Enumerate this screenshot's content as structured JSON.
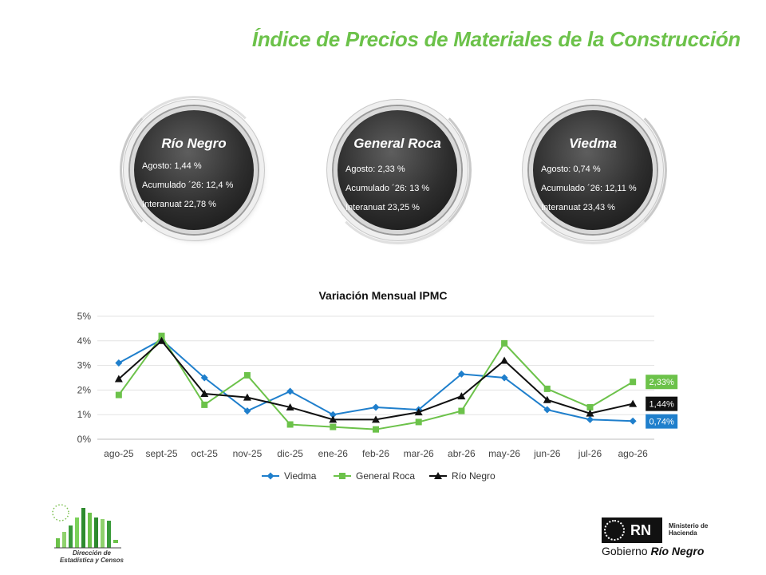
{
  "header": {
    "title": "Índice de Precios de Materiales de la Construcción"
  },
  "badges": [
    {
      "name": "Río Negro",
      "lines": [
        "Agosto: 1,44 %",
        "Acumulado ´26: 12,4 %",
        "Interanuat 22,78 %"
      ]
    },
    {
      "name": "General Roca",
      "lines": [
        "Agosto: 2,33 %",
        "Acumulado ´26: 13 %",
        "Interanuat 23,25 %"
      ]
    },
    {
      "name": "Viedma",
      "lines": [
        "Agosto: 0,74 %",
        "Acumulado ´26: 12,11 %",
        "Interanuat 23,43 %"
      ]
    }
  ],
  "chart_data": {
    "type": "line",
    "title": "Variación Mensual IPMC",
    "categories": [
      "ago-25",
      "sept-25",
      "oct-25",
      "nov-25",
      "dic-25",
      "ene-26",
      "feb-26",
      "mar-26",
      "abr-26",
      "may-26",
      "jun-26",
      "jul-26",
      "ago-26"
    ],
    "ylim": [
      0,
      5
    ],
    "yticks": [
      0,
      1,
      2,
      3,
      4,
      5
    ],
    "ytick_labels": [
      "0%",
      "1%",
      "2%",
      "3%",
      "4%",
      "5%"
    ],
    "grid": true,
    "legend": "bottom",
    "series": [
      {
        "name": "Viedma",
        "color": "#1f7fcc",
        "marker": "diamond",
        "values": [
          3.1,
          4.05,
          2.5,
          1.15,
          1.95,
          1.0,
          1.3,
          1.2,
          2.65,
          2.5,
          1.2,
          0.8,
          0.74
        ],
        "end_label": "0,74%"
      },
      {
        "name": "General Roca",
        "color": "#6cc24a",
        "marker": "square",
        "values": [
          1.8,
          4.2,
          1.4,
          2.6,
          0.6,
          0.5,
          0.4,
          0.7,
          1.15,
          3.9,
          2.05,
          1.3,
          2.33
        ],
        "end_label": "2,33%"
      },
      {
        "name": "Río Negro",
        "color": "#111111",
        "marker": "triangle",
        "values": [
          2.45,
          4.0,
          1.85,
          1.7,
          1.3,
          0.8,
          0.8,
          1.1,
          1.75,
          3.2,
          1.6,
          1.05,
          1.44
        ],
        "end_label": "1,44%"
      }
    ]
  },
  "footer": {
    "left_logo": [
      "Dirección de",
      "Estadística y Censos"
    ],
    "right_logo": {
      "rn": "RN",
      "ministry": [
        "Ministerio de",
        "Hacienda"
      ],
      "gobierno": "Gobierno",
      "province": "Río Negro"
    }
  }
}
